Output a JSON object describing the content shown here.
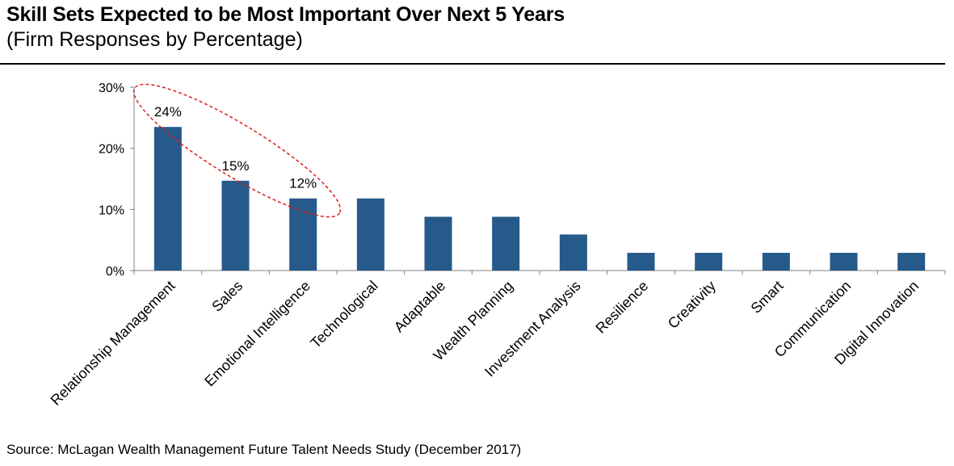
{
  "header": {
    "title": "Skill Sets Expected to be Most Important Over Next 5 Years",
    "subtitle": "(Firm Responses by Percentage)"
  },
  "chart_data": {
    "type": "bar",
    "categories": [
      "Relationship Management",
      "Sales",
      "Emotional Intelligence",
      "Technological",
      "Adaptable",
      "Wealth Planning",
      "Investment Analysis",
      "Resilience",
      "Creativity",
      "Smart",
      "Communication",
      "Digital Innovation"
    ],
    "values": [
      23.5,
      14.7,
      11.8,
      11.8,
      8.8,
      8.8,
      5.9,
      2.9,
      2.9,
      2.9,
      2.9,
      2.9
    ],
    "data_labels": [
      "24%",
      "15%",
      "12%",
      "",
      "",
      "",
      "",
      "",
      "",
      "",
      "",
      ""
    ],
    "ylim": [
      0,
      30
    ],
    "yticks": [
      0,
      10,
      20,
      30
    ],
    "ytick_labels": [
      "0%",
      "10%",
      "20%",
      "30%"
    ],
    "grid": false,
    "bar_color": "#255A8A",
    "highlight_color": "#E01B1B",
    "highlight_categories": [
      "Relationship Management",
      "Sales",
      "Emotional Intelligence"
    ]
  },
  "footer": {
    "source": "Source: McLagan Wealth Management Future Talent Needs Study (December 2017)"
  }
}
